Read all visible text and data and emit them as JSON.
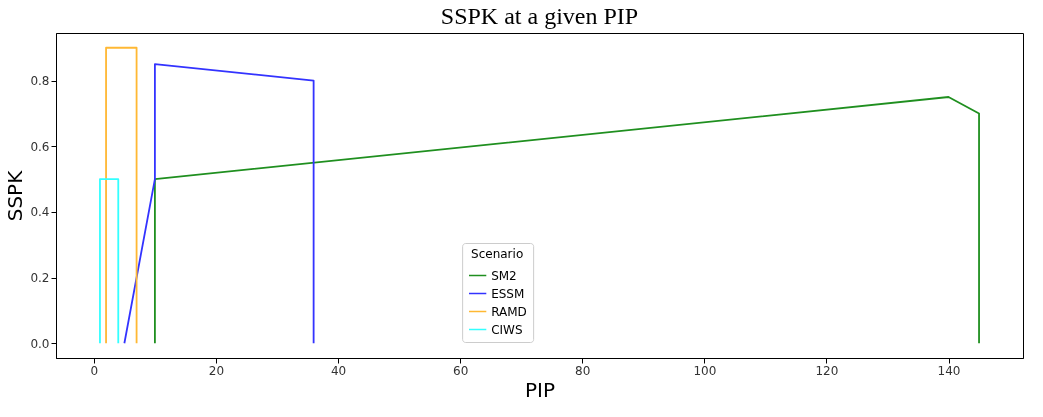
{
  "chart_data": {
    "type": "line",
    "title": "SSPK at a given PIP",
    "xlabel": "PIP",
    "ylabel": "SSPK",
    "legend_title": "Scenario",
    "series": [
      {
        "name": "SM2",
        "color": "#1f8f1f",
        "x": [
          10,
          10,
          140,
          145,
          145
        ],
        "values": [
          0,
          0.5,
          0.75,
          0.7,
          0
        ]
      },
      {
        "name": "ESSM",
        "color": "#3333ff",
        "x": [
          5,
          10,
          10,
          36,
          36
        ],
        "values": [
          0,
          0.5,
          0.85,
          0.8,
          0
        ]
      },
      {
        "name": "RAMD",
        "color": "#ffb833",
        "x": [
          2,
          2,
          7,
          7
        ],
        "values": [
          0,
          0.9,
          0.9,
          0
        ]
      },
      {
        "name": "CIWS",
        "color": "#33ffff",
        "x": [
          1,
          1,
          4,
          4
        ],
        "values": [
          0,
          0.5,
          0.5,
          0
        ]
      }
    ],
    "xlim": [
      -6.2,
      152.2
    ],
    "ylim": [
      -0.045,
      0.945
    ],
    "xticks": [
      0,
      20,
      40,
      60,
      80,
      100,
      120,
      140
    ],
    "yticks": [
      {
        "value": 0,
        "label": "0.0"
      },
      {
        "value": 0.2,
        "label": "0.2"
      },
      {
        "value": 0.4,
        "label": "0.4"
      },
      {
        "value": 0.6,
        "label": "0.6"
      },
      {
        "value": 0.8,
        "label": "0.8"
      }
    ],
    "grid": false,
    "legend": "bottom",
    "marker": "none",
    "line_style": "solid"
  }
}
